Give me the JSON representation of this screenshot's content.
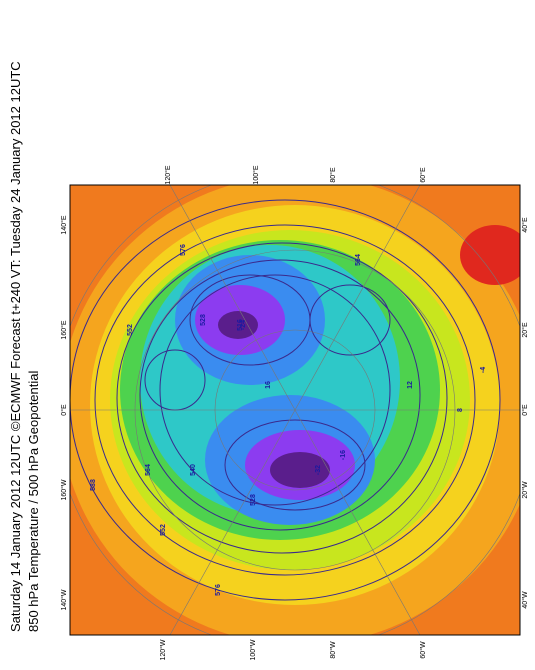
{
  "header": {
    "lines": [
      "Saturday 14 January 2012 12UTC ©ECMWF Forecast t+240 VT: Tuesday 24 January 2012 12UTC",
      "850 hPa Temperature / 500 hPa Geopotential"
    ]
  },
  "map": {
    "top_labels": [
      "120°E",
      "100°E",
      "80°E",
      "60°E"
    ],
    "bottom_labels": [
      "120°W",
      "100°W",
      "80°W",
      "60°W"
    ],
    "left_labels": [
      "140°E",
      "160°E",
      "0°E",
      "160°W",
      "140°W"
    ],
    "right_labels": [
      "40°E",
      "20°E",
      "0°E",
      "20°W",
      "40°W"
    ],
    "contour_labels": [
      "552",
      "576",
      "528",
      "516",
      "564",
      "540",
      "588",
      "12",
      "16",
      "-24",
      "-32",
      "8",
      "-4",
      "576",
      "552",
      "528",
      "-16",
      "564"
    ]
  }
}
